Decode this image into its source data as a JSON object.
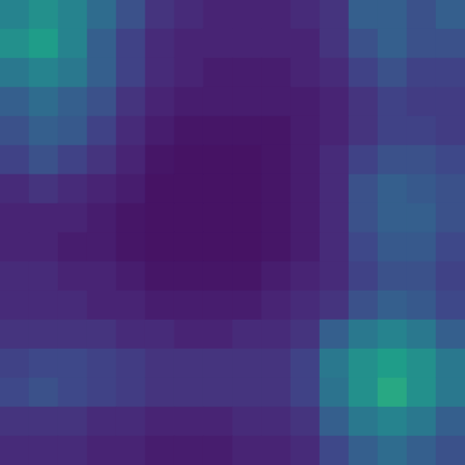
{
  "chart_data": {
    "type": "heatmap",
    "tick_labels": false,
    "zlim": [
      0,
      1
    ],
    "cells": [
      [
        0.45,
        0.5,
        0.45,
        0.35,
        0.25,
        0.15,
        0.12,
        0.1,
        0.1,
        0.1,
        0.12,
        0.15,
        0.3,
        0.3,
        0.25,
        0.3
      ],
      [
        0.5,
        0.55,
        0.45,
        0.3,
        0.2,
        0.12,
        0.1,
        0.1,
        0.1,
        0.1,
        0.1,
        0.15,
        0.25,
        0.3,
        0.25,
        0.25
      ],
      [
        0.4,
        0.45,
        0.4,
        0.3,
        0.2,
        0.12,
        0.1,
        0.08,
        0.08,
        0.08,
        0.1,
        0.12,
        0.2,
        0.25,
        0.2,
        0.2
      ],
      [
        0.3,
        0.35,
        0.3,
        0.25,
        0.15,
        0.1,
        0.08,
        0.08,
        0.08,
        0.08,
        0.08,
        0.1,
        0.15,
        0.2,
        0.18,
        0.18
      ],
      [
        0.25,
        0.3,
        0.28,
        0.2,
        0.12,
        0.08,
        0.06,
        0.06,
        0.06,
        0.06,
        0.08,
        0.1,
        0.15,
        0.2,
        0.2,
        0.18
      ],
      [
        0.2,
        0.25,
        0.2,
        0.15,
        0.1,
        0.06,
        0.05,
        0.05,
        0.05,
        0.06,
        0.08,
        0.12,
        0.2,
        0.25,
        0.25,
        0.22
      ],
      [
        0.12,
        0.15,
        0.12,
        0.1,
        0.08,
        0.05,
        0.05,
        0.05,
        0.05,
        0.06,
        0.08,
        0.12,
        0.25,
        0.3,
        0.28,
        0.25
      ],
      [
        0.1,
        0.1,
        0.1,
        0.08,
        0.06,
        0.05,
        0.05,
        0.05,
        0.05,
        0.06,
        0.08,
        0.12,
        0.25,
        0.3,
        0.3,
        0.25
      ],
      [
        0.1,
        0.1,
        0.08,
        0.08,
        0.06,
        0.05,
        0.05,
        0.05,
        0.05,
        0.06,
        0.08,
        0.12,
        0.22,
        0.28,
        0.28,
        0.22
      ],
      [
        0.12,
        0.12,
        0.1,
        0.1,
        0.08,
        0.06,
        0.06,
        0.06,
        0.06,
        0.08,
        0.1,
        0.12,
        0.2,
        0.25,
        0.25,
        0.2
      ],
      [
        0.12,
        0.12,
        0.12,
        0.1,
        0.1,
        0.08,
        0.08,
        0.08,
        0.08,
        0.1,
        0.12,
        0.15,
        0.25,
        0.3,
        0.28,
        0.22
      ],
      [
        0.15,
        0.15,
        0.15,
        0.15,
        0.12,
        0.12,
        0.1,
        0.1,
        0.12,
        0.12,
        0.15,
        0.3,
        0.4,
        0.45,
        0.4,
        0.3
      ],
      [
        0.2,
        0.22,
        0.22,
        0.2,
        0.18,
        0.15,
        0.15,
        0.15,
        0.15,
        0.15,
        0.2,
        0.4,
        0.5,
        0.55,
        0.5,
        0.4
      ],
      [
        0.22,
        0.25,
        0.22,
        0.2,
        0.18,
        0.15,
        0.15,
        0.15,
        0.15,
        0.15,
        0.2,
        0.38,
        0.5,
        0.6,
        0.5,
        0.4
      ],
      [
        0.15,
        0.15,
        0.15,
        0.12,
        0.12,
        0.1,
        0.1,
        0.1,
        0.12,
        0.12,
        0.15,
        0.3,
        0.4,
        0.45,
        0.4,
        0.3
      ],
      [
        0.12,
        0.12,
        0.12,
        0.1,
        0.1,
        0.08,
        0.08,
        0.08,
        0.1,
        0.1,
        0.12,
        0.22,
        0.3,
        0.35,
        0.3,
        0.25
      ]
    ]
  }
}
